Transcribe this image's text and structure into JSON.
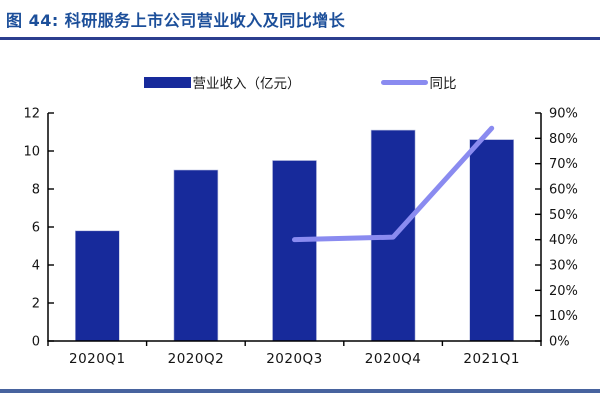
{
  "title": {
    "text": "图 44: 科研服务上市公司营业收入及同比增长",
    "color": "#1C4F9A",
    "rule_color": "#2B3E8F"
  },
  "footer": {
    "rule_color": "#47639E"
  },
  "chart_data": {
    "type": "bar+line combo",
    "categories": [
      "2020Q1",
      "2020Q2",
      "2020Q3",
      "2020Q4",
      "2021Q1"
    ],
    "series": [
      {
        "name": "营业收入（亿元）",
        "type": "bar",
        "axis": "left",
        "values": [
          5.8,
          9.0,
          9.5,
          11.1,
          10.6
        ],
        "color": "#172A9B"
      },
      {
        "name": "同比",
        "type": "line",
        "axis": "right",
        "values": [
          null,
          null,
          40,
          41,
          84
        ],
        "color": "#8A8BF0"
      }
    ],
    "left_axis": {
      "min": 0,
      "max": 12,
      "step": 2,
      "ticks": [
        "0",
        "2",
        "4",
        "6",
        "8",
        "10",
        "12"
      ]
    },
    "right_axis": {
      "min": 0,
      "max": 90,
      "step": 10,
      "ticks": [
        "0%",
        "10%",
        "20%",
        "30%",
        "40%",
        "50%",
        "60%",
        "70%",
        "80%",
        "90%"
      ]
    },
    "grid": false,
    "legend_position": "top-center",
    "axis_color": "#000000",
    "tick_label_color": "#141414"
  }
}
